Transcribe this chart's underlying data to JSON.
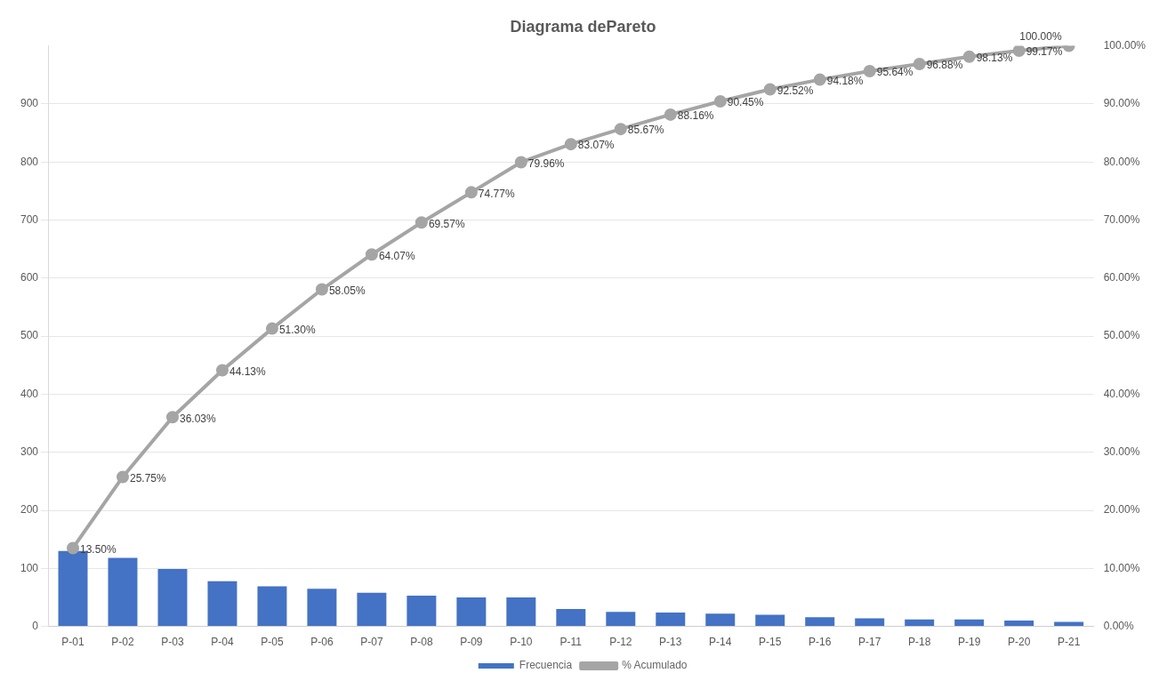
{
  "chart_data": {
    "type": "bar",
    "title": "Diagrama dePareto",
    "categories": [
      "P-01",
      "P-02",
      "P-03",
      "P-04",
      "P-05",
      "P-06",
      "P-07",
      "P-08",
      "P-09",
      "P-10",
      "P-11",
      "P-12",
      "P-13",
      "P-14",
      "P-15",
      "P-16",
      "P-17",
      "P-18",
      "P-19",
      "P-20",
      "P-21"
    ],
    "series": [
      {
        "name": "Frecuencia",
        "color": "#4472c4",
        "values": [
          130,
          118,
          99,
          78,
          69,
          65,
          58,
          53,
          50,
          50,
          30,
          25,
          24,
          22,
          20,
          16,
          14,
          12,
          12,
          10,
          8
        ]
      },
      {
        "name": "% Acumulado",
        "type": "line",
        "axis": "y2",
        "color": "#a5a5a5",
        "marker": "circle",
        "values": [
          13.5,
          25.75,
          36.03,
          44.13,
          51.3,
          58.05,
          64.07,
          69.57,
          74.77,
          79.96,
          83.07,
          85.67,
          88.16,
          90.45,
          92.52,
          94.18,
          95.64,
          96.88,
          98.13,
          99.17,
          100
        ],
        "value_labels": [
          "13.50%",
          "25.75%",
          "36.03%",
          "44.13%",
          "51.30%",
          "58.05%",
          "64.07%",
          "69.57%",
          "74.77%",
          "79.96%",
          "83.07%",
          "85.67%",
          "88.16%",
          "90.45%",
          "92.52%",
          "94.18%",
          "95.64%",
          "96.88%",
          "98.13%",
          "99.17%",
          "100.00%"
        ]
      }
    ],
    "ylim": [
      0,
      1000
    ],
    "yticks": [
      0,
      100,
      200,
      300,
      400,
      500,
      600,
      700,
      800,
      900
    ],
    "y2lim": [
      0,
      100
    ],
    "y2ticks": [
      {
        "value": 0,
        "label": "0.00%"
      },
      {
        "value": 10,
        "label": "10.00%"
      },
      {
        "value": 20,
        "label": "20.00%"
      },
      {
        "value": 30,
        "label": "30.00%"
      },
      {
        "value": 40,
        "label": "40.00%"
      },
      {
        "value": 50,
        "label": "50.00%"
      },
      {
        "value": 60,
        "label": "60.00%"
      },
      {
        "value": 70,
        "label": "70.00%"
      },
      {
        "value": 80,
        "label": "80.00%"
      },
      {
        "value": 90,
        "label": "90.00%"
      },
      {
        "value": 100,
        "label": "100.00%"
      }
    ],
    "grid": "y",
    "legend": "bottom"
  }
}
